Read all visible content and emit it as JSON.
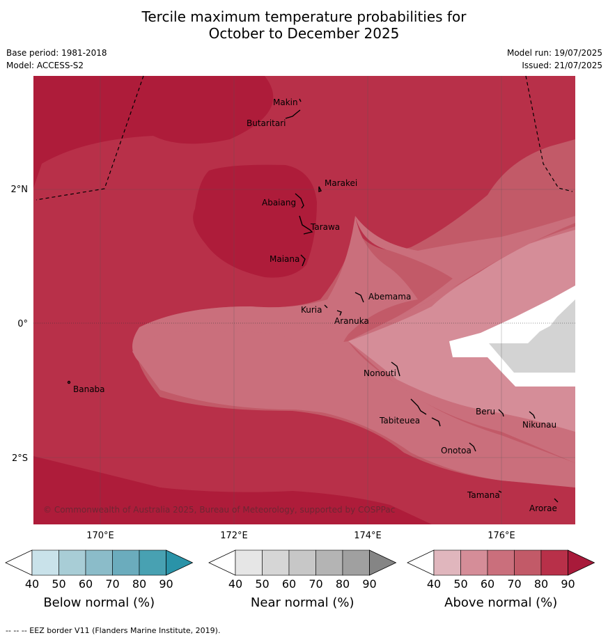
{
  "title_line1": "Tercile maximum temperature probabilities for",
  "title_line2": "October to December 2025",
  "meta_left": [
    "Base period: 1981-2018",
    "Model: ACCESS-S2"
  ],
  "meta_right": [
    "Model run: 19/07/2025",
    "Issued: 21/07/2025"
  ],
  "lat_labels": [
    "2°N",
    "0°",
    "2°S"
  ],
  "lon_labels": [
    "170°E",
    "172°E",
    "174°E",
    "176°E"
  ],
  "places": [
    "Makin",
    "Butaritari",
    "Marakei",
    "Abaiang",
    "Tarawa",
    "Maiana",
    "Abemama",
    "Kuria",
    "Aranuka",
    "Banaba",
    "Nonouti",
    "Tabiteuea",
    "Beru",
    "Nikunau",
    "Onotoa",
    "Tamana",
    "Arorae"
  ],
  "copyright": "© Commonwealth of Australia 2025, Bureau of Meteorology, supported by COSPPac",
  "colorbars": [
    {
      "label": "Below normal (%)",
      "ticks": [
        "40",
        "50",
        "60",
        "70",
        "80",
        "90"
      ],
      "colors": [
        "#c9e2ea",
        "#a8cdd6",
        "#8bbcc9",
        "#6bacbd",
        "#48a1b2",
        "#2a93a8"
      ]
    },
    {
      "label": "Near normal (%)",
      "ticks": [
        "40",
        "50",
        "60",
        "70",
        "80",
        "90"
      ],
      "colors": [
        "#e6e6e6",
        "#d6d6d6",
        "#c7c7c7",
        "#b4b4b4",
        "#a0a0a0",
        "#858585"
      ]
    },
    {
      "label": "Above normal (%)",
      "ticks": [
        "40",
        "50",
        "60",
        "70",
        "80",
        "90"
      ],
      "colors": [
        "#e0b6bd",
        "#d58d98",
        "#ca6f7c",
        "#c25a68",
        "#b83049",
        "#a81a3a"
      ]
    }
  ],
  "footer": "-- -- -- EEZ border V11 (Flanders Marine Institute, 2019)."
}
